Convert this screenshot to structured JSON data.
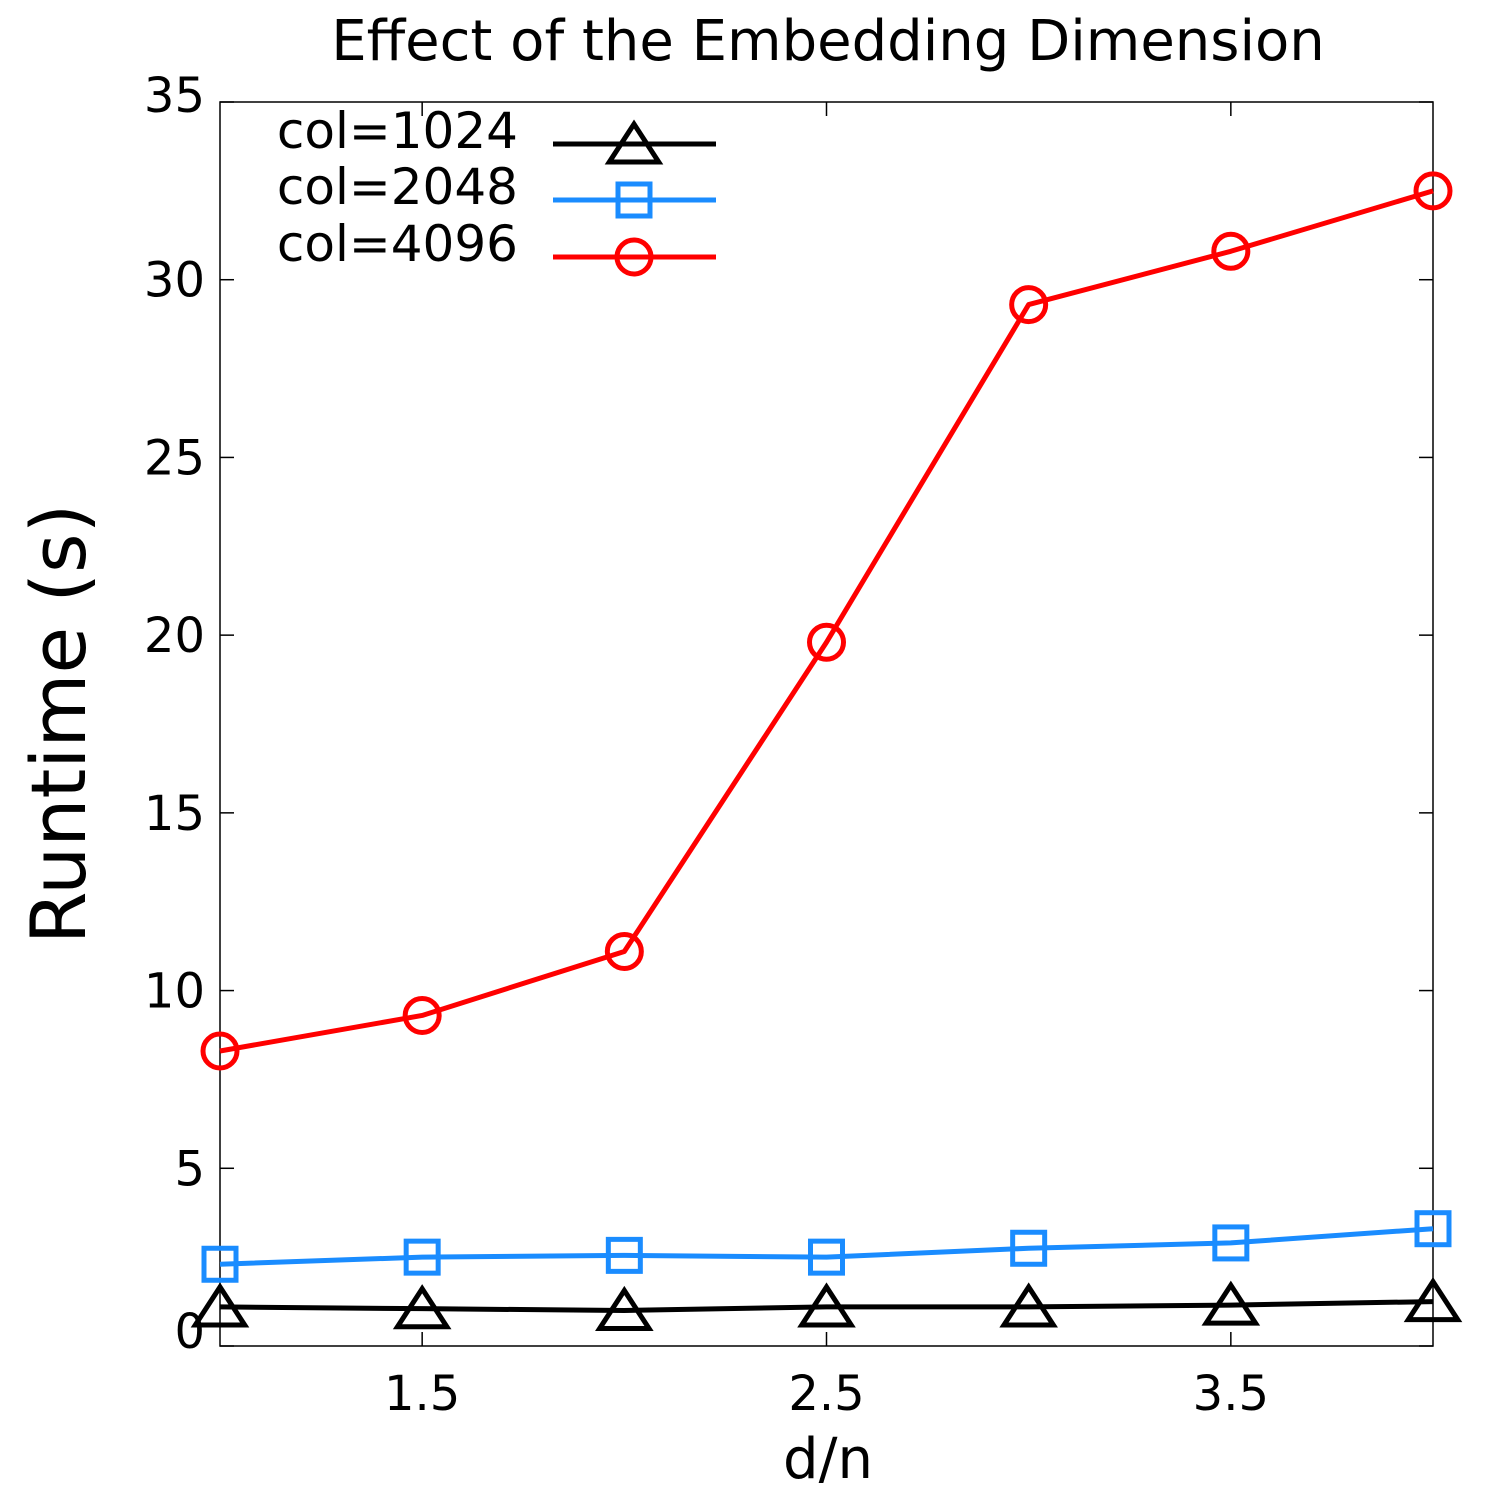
{
  "chart_data": {
    "type": "line",
    "title": "Effect of the Embedding Dimension",
    "xlabel": "d/n",
    "ylabel": "Runtime (s)",
    "xlim": [
      1,
      4
    ],
    "ylim": [
      0,
      35
    ],
    "x": [
      1,
      1.5,
      2,
      2.5,
      3,
      3.5,
      4
    ],
    "x_ticks": [
      "1.5",
      "2.5",
      "3.5"
    ],
    "y_ticks": [
      "0",
      "5",
      "10",
      "15",
      "20",
      "25",
      "30",
      "35"
    ],
    "grid": false,
    "legend_position": "top-left",
    "series": [
      {
        "name": "col=1024",
        "color": "#000000",
        "marker": "triangle",
        "values": [
          1.1,
          1.05,
          1.0,
          1.1,
          1.1,
          1.15,
          1.25
        ]
      },
      {
        "name": "col=2048",
        "color": "#1a8cff",
        "marker": "square",
        "values": [
          2.3,
          2.5,
          2.55,
          2.5,
          2.75,
          2.9,
          3.3
        ]
      },
      {
        "name": "col=4096",
        "color": "#ff0000",
        "marker": "circle",
        "values": [
          8.3,
          9.3,
          11.1,
          19.8,
          29.3,
          30.8,
          32.5
        ]
      }
    ]
  }
}
